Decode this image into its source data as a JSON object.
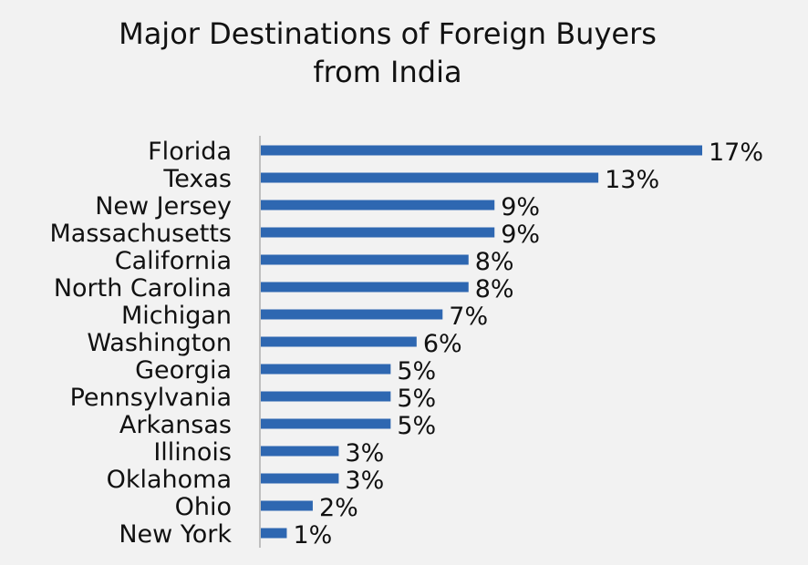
{
  "title": {
    "line1": "Major Destinations of Foreign Buyers",
    "line2": "from India"
  },
  "colors": {
    "bar": "#2e67b1",
    "axis": "#bfbfbf",
    "background": "#f2f2f2",
    "text": "#111111"
  },
  "chart_data": {
    "type": "bar",
    "orientation": "horizontal",
    "title": "Major Destinations of Foreign Buyers from India",
    "categories": [
      "Florida",
      "Texas",
      "New Jersey",
      "Massachusetts",
      "California",
      "North Carolina",
      "Michigan",
      "Washington",
      "Georgia",
      "Pennsylvania",
      "Arkansas",
      "Illinois",
      "Oklahoma",
      "Ohio",
      "New York"
    ],
    "values": [
      17,
      13,
      9,
      9,
      8,
      8,
      7,
      6,
      5,
      5,
      5,
      3,
      3,
      2,
      1
    ],
    "value_labels": [
      "17%",
      "13%",
      "9%",
      "9%",
      "8%",
      "8%",
      "7%",
      "6%",
      "5%",
      "5%",
      "5%",
      "3%",
      "3%",
      "2%",
      "1%"
    ],
    "unit": "%",
    "xlim": [
      0,
      17
    ],
    "grid": false,
    "legend": "none"
  }
}
